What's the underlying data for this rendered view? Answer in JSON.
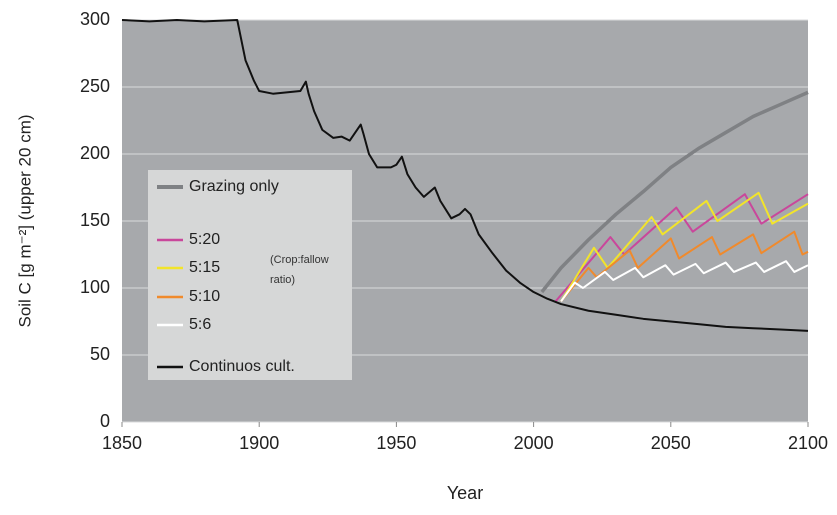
{
  "chart_data": {
    "type": "line",
    "xlabel": "Year",
    "ylabel": "Soil C [g m⁻²] (upper 20 cm)",
    "annotation": "(Crop:fallow ratio)",
    "xlim": [
      1850,
      2100
    ],
    "xticks": [
      1850,
      1900,
      1950,
      2000,
      2050,
      2100
    ],
    "ylim": [
      0,
      300
    ],
    "yticks": [
      0,
      50,
      100,
      150,
      200,
      250,
      300
    ],
    "grid": true,
    "series": [
      {
        "name": "Grazing only",
        "color": "#7f8184",
        "x": [
          2003,
          2010,
          2020,
          2030,
          2040,
          2050,
          2060,
          2070,
          2080,
          2090,
          2100
        ],
        "values": [
          97,
          115,
          136,
          155,
          172,
          190,
          204,
          216,
          228,
          237,
          246
        ]
      },
      {
        "name": "5:20",
        "color": "#c9479b",
        "x": [
          2008,
          2028,
          2033,
          2052,
          2058,
          2077,
          2083,
          2100
        ],
        "values": [
          90,
          138,
          125,
          160,
          142,
          170,
          148,
          170
        ]
      },
      {
        "name": "5:15",
        "color": "#f2e42a",
        "x": [
          2010,
          2022,
          2027,
          2043,
          2047,
          2063,
          2067,
          2082,
          2087,
          2100
        ],
        "values": [
          90,
          130,
          115,
          153,
          140,
          165,
          150,
          171,
          148,
          163
        ]
      },
      {
        "name": "5:10",
        "color": "#f08a2c",
        "x": [
          2010,
          2020,
          2023,
          2035,
          2038,
          2050,
          2053,
          2065,
          2068,
          2080,
          2083,
          2095,
          2098,
          2100
        ],
        "values": [
          90,
          115,
          108,
          128,
          115,
          137,
          122,
          138,
          125,
          140,
          126,
          142,
          125,
          127
        ]
      },
      {
        "name": "5:6",
        "color": "#ffffff",
        "x": [
          2010,
          2015,
          2018,
          2026,
          2029,
          2037,
          2040,
          2048,
          2051,
          2059,
          2062,
          2070,
          2073,
          2081,
          2084,
          2092,
          2095,
          2100
        ],
        "values": [
          90,
          104,
          100,
          112,
          106,
          115,
          108,
          117,
          110,
          118,
          111,
          119,
          112,
          119,
          112,
          120,
          112,
          117
        ]
      },
      {
        "name": "Continuos cult.",
        "color": "#111111",
        "x": [
          1850,
          1860,
          1870,
          1880,
          1892,
          1893,
          1895,
          1898,
          1900,
          1905,
          1915,
          1917,
          1918,
          1920,
          1923,
          1927,
          1930,
          1933,
          1937,
          1938,
          1940,
          1943,
          1948,
          1950,
          1952,
          1954,
          1957,
          1960,
          1964,
          1966,
          1970,
          1973,
          1975,
          1977,
          1980,
          1985,
          1990,
          1995,
          2000,
          2005,
          2010,
          2020,
          2030,
          2040,
          2050,
          2060,
          2070,
          2080,
          2090,
          2100
        ],
        "values": [
          300,
          299,
          300,
          299,
          300,
          290,
          270,
          255,
          247,
          245,
          247,
          254,
          245,
          232,
          218,
          212,
          213,
          210,
          222,
          215,
          200,
          190,
          190,
          192,
          198,
          185,
          175,
          168,
          175,
          165,
          152,
          155,
          159,
          155,
          140,
          126,
          113,
          104,
          97,
          92,
          88,
          83,
          80,
          77,
          75,
          73,
          71,
          70,
          69,
          68
        ]
      }
    ]
  }
}
